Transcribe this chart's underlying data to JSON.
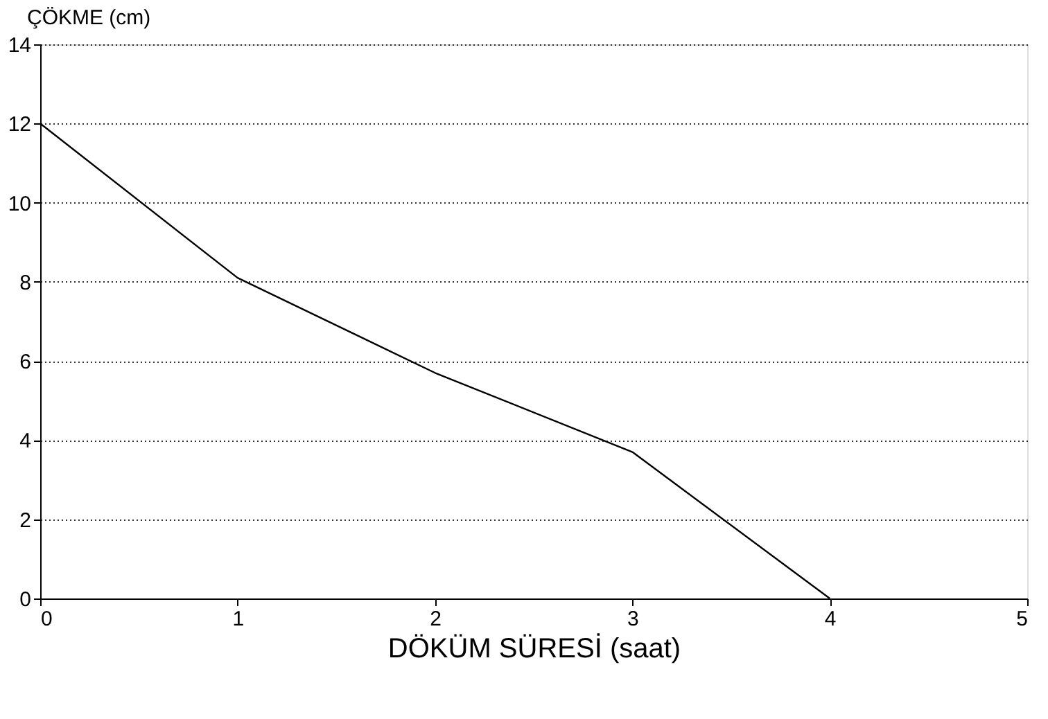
{
  "chart_data": {
    "type": "line",
    "xlabel": "DÖKÜM SÜRESİ (saat)",
    "ylabel": "ÇÖKME (cm)",
    "x": [
      0,
      1,
      2,
      3,
      4
    ],
    "series": [
      {
        "color": "#000000",
        "values": [
          12,
          8.1,
          5.7,
          3.7,
          0
        ]
      }
    ],
    "xlim": [
      0,
      5
    ],
    "xticks": [
      0,
      1,
      2,
      3,
      4,
      5
    ],
    "ylim": [
      0,
      14
    ],
    "yticks": [
      0,
      2,
      4,
      6,
      8,
      10,
      12,
      14
    ],
    "grid": "y",
    "marker": "none",
    "line_style": "solid",
    "legend": false
  }
}
